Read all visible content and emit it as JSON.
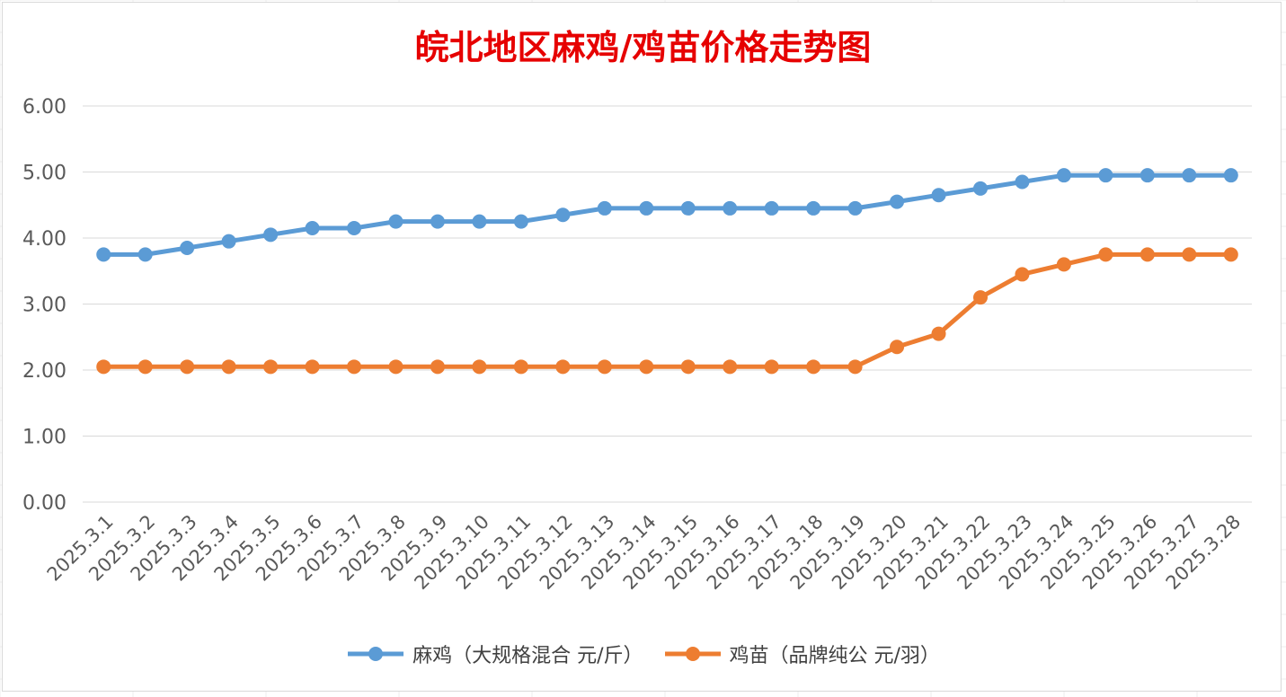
{
  "chart_data": {
    "type": "line",
    "title": "皖北地区麻鸡/鸡苗价格走势图",
    "categories": [
      "2025.3.1",
      "2025.3.2",
      "2025.3.3",
      "2025.3.4",
      "2025.3.5",
      "2025.3.6",
      "2025.3.7",
      "2025.3.8",
      "2025.3.9",
      "2025.3.10",
      "2025.3.11",
      "2025.3.12",
      "2025.3.13",
      "2025.3.14",
      "2025.3.15",
      "2025.3.16",
      "2025.3.17",
      "2025.3.18",
      "2025.3.19",
      "2025.3.20",
      "2025.3.21",
      "2025.3.22",
      "2025.3.23",
      "2025.3.24",
      "2025.3.25",
      "2025.3.26",
      "2025.3.27",
      "2025.3.28"
    ],
    "series": [
      {
        "name": "麻鸡（大规格混合 元/斤）",
        "color": "#5b9bd5",
        "values": [
          3.75,
          3.75,
          3.85,
          3.95,
          4.05,
          4.15,
          4.15,
          4.25,
          4.25,
          4.25,
          4.25,
          4.35,
          4.45,
          4.45,
          4.45,
          4.45,
          4.45,
          4.45,
          4.45,
          4.55,
          4.65,
          4.75,
          4.85,
          4.95,
          4.95,
          4.95,
          4.95,
          4.95
        ]
      },
      {
        "name": "鸡苗（品牌纯公 元/羽）",
        "color": "#ed7d31",
        "values": [
          2.05,
          2.05,
          2.05,
          2.05,
          2.05,
          2.05,
          2.05,
          2.05,
          2.05,
          2.05,
          2.05,
          2.05,
          2.05,
          2.05,
          2.05,
          2.05,
          2.05,
          2.05,
          2.05,
          2.35,
          2.55,
          3.1,
          3.45,
          3.6,
          3.75,
          3.75,
          3.75,
          3.75
        ]
      }
    ],
    "yticks": [
      "0.00",
      "1.00",
      "2.00",
      "3.00",
      "4.00",
      "5.00",
      "6.00"
    ],
    "ylim": [
      0,
      6
    ],
    "grid": true,
    "legend": "bottom"
  }
}
